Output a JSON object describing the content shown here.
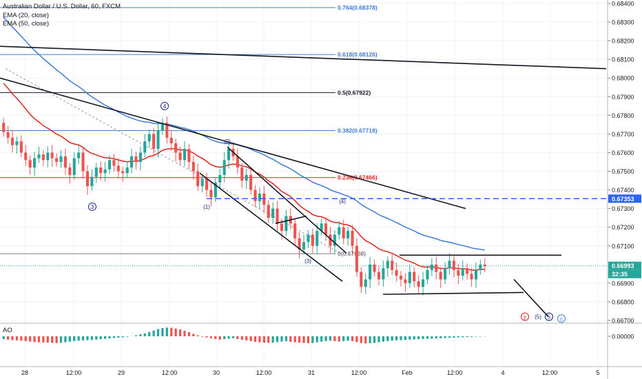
{
  "header": {
    "symbol": "Australian Dollar / U.S. Dollar, 60, FXCM",
    "ema20": "EMA (20, close)",
    "ema50": "EMA (50, close)"
  },
  "ao_label": "AO",
  "colors": {
    "bull": "#26a69a",
    "bear": "#ef5350",
    "ema20": "#e0211c",
    "ema50": "#3d7dd6",
    "fib": "#3d7dd6",
    "dashed": "#2962ff",
    "price_tag": "#26a69a",
    "price_line": "#26a69a"
  },
  "chart_data": {
    "type": "candlestick",
    "symbol": "AUDUSD",
    "timeframe": "60",
    "ylim": [
      0.667,
      0.684
    ],
    "y_ticks": [
      "0.68400",
      "0.68300",
      "0.68200",
      "0.68100",
      "0.68000",
      "0.67900",
      "0.67800",
      "0.67700",
      "0.67600",
      "0.67500",
      "0.67400",
      "0.67300",
      "0.67200",
      "0.67100",
      "0.66900",
      "0.66800",
      "0.66700"
    ],
    "x_ticks": [
      "28",
      "12:00",
      "29",
      "12:00",
      "30",
      "12:00",
      "31",
      "12:00",
      "Feb",
      "12:00",
      "4",
      "12:00",
      "5"
    ],
    "last_price": "0.66993",
    "countdown": "32:35",
    "level_tag": "0.67353",
    "ao_tick": "0.00000",
    "fib_levels": [
      {
        "label": "0.764(0.68378)",
        "value": 0.68378,
        "color": "#3d7dd6"
      },
      {
        "label": "0.618(0.68126)",
        "value": 0.68126,
        "color": "#3d7dd6"
      },
      {
        "label": "0.5(0.67922)",
        "value": 0.67922,
        "color": "#131722"
      },
      {
        "label": "0.382(0.67718)",
        "value": 0.67718,
        "color": "#3d7dd6"
      },
      {
        "label": "0.236(0.67466)",
        "value": 0.67466,
        "color": "#e0211c"
      },
      {
        "label": "0(0.67058)",
        "value": 0.67058,
        "color": "#787b86"
      }
    ],
    "wave_labels": [
      {
        "text": "4",
        "circled": true,
        "price": 0.6785
      },
      {
        "text": "3",
        "circled": true,
        "price": 0.6731
      },
      {
        "text": "(2)",
        "circled": false,
        "price": 0.6766
      },
      {
        "text": "(1)",
        "circled": false,
        "price": 0.6731
      },
      {
        "text": "(4)",
        "circled": false,
        "price": 0.6734
      },
      {
        "text": "(3)",
        "circled": false,
        "price": 0.6702
      },
      {
        "text": "y",
        "circled": true,
        "price": 0.6672
      },
      {
        "text": "(5)",
        "circled": false,
        "price": 0.6672
      },
      {
        "text": "5",
        "circled": true,
        "price": 0.6672
      },
      {
        "text": "c",
        "circled": true,
        "price": 0.6671
      }
    ],
    "candles_close": [
      0.6771,
      0.6768,
      0.6764,
      0.6766,
      0.676,
      0.6756,
      0.6752,
      0.6757,
      0.6759,
      0.6756,
      0.676,
      0.6757,
      0.6755,
      0.6758,
      0.6752,
      0.6748,
      0.6757,
      0.676,
      0.675,
      0.6742,
      0.6747,
      0.6752,
      0.6749,
      0.6751,
      0.6756,
      0.6753,
      0.675,
      0.6749,
      0.6752,
      0.6758,
      0.6755,
      0.676,
      0.6766,
      0.677,
      0.6762,
      0.6772,
      0.6776,
      0.6768,
      0.6765,
      0.676,
      0.6756,
      0.6762,
      0.6755,
      0.675,
      0.6742,
      0.6746,
      0.674,
      0.6736,
      0.6744,
      0.6748,
      0.6756,
      0.6762,
      0.6758,
      0.6752,
      0.6745,
      0.6748,
      0.674,
      0.6734,
      0.6738,
      0.6732,
      0.6725,
      0.673,
      0.6722,
      0.6718,
      0.6726,
      0.6722,
      0.6714,
      0.6708,
      0.6712,
      0.6716,
      0.671,
      0.6718,
      0.6722,
      0.6716,
      0.671,
      0.6716,
      0.672,
      0.6714,
      0.6718,
      0.671,
      0.6696,
      0.6688,
      0.6692,
      0.67,
      0.6696,
      0.6692,
      0.6698,
      0.6702,
      0.6697,
      0.6694,
      0.6692,
      0.669,
      0.6696,
      0.6691,
      0.6688,
      0.6692,
      0.6697,
      0.67,
      0.6696,
      0.6692,
      0.6698,
      0.6702,
      0.6697,
      0.6694,
      0.6698,
      0.6695,
      0.6692,
      0.6697,
      0.67,
      0.6699
    ],
    "ao_values": [
      -0.3,
      -0.35,
      -0.4,
      -0.42,
      -0.45,
      -0.5,
      -0.55,
      -0.6,
      -0.62,
      -0.64,
      -0.66,
      -0.68,
      -0.7,
      -0.68,
      -0.62,
      -0.56,
      -0.5,
      -0.46,
      -0.42,
      -0.4,
      -0.38,
      -0.34,
      -0.3,
      -0.26,
      -0.22,
      -0.18,
      -0.14,
      -0.1,
      -0.05,
      0.02,
      0.1,
      0.2,
      0.3,
      0.45,
      0.6,
      0.75,
      0.85,
      0.9,
      0.88,
      0.8,
      0.7,
      0.58,
      0.42,
      0.25,
      0.1,
      -0.05,
      -0.12,
      -0.2,
      -0.28,
      -0.35,
      -0.3,
      -0.25,
      -0.2,
      -0.28,
      -0.36,
      -0.42,
      -0.5,
      -0.58,
      -0.62,
      -0.66,
      -0.68,
      -0.66,
      -0.6,
      -0.55,
      -0.5,
      -0.58,
      -0.62,
      -0.66,
      -0.7,
      -0.72,
      -0.7,
      -0.62,
      -0.55,
      -0.5,
      -0.46,
      -0.5,
      -0.54,
      -0.5,
      -0.46,
      -0.5,
      -0.6,
      -0.7,
      -0.75,
      -0.72,
      -0.68,
      -0.62,
      -0.56,
      -0.5,
      -0.45,
      -0.42,
      -0.4,
      -0.38,
      -0.35,
      -0.33,
      -0.3,
      -0.28,
      -0.26,
      -0.24,
      -0.22,
      -0.2,
      -0.18,
      -0.16,
      -0.14,
      -0.12,
      -0.1,
      -0.08,
      -0.06,
      -0.04,
      -0.03,
      -0.02
    ]
  }
}
